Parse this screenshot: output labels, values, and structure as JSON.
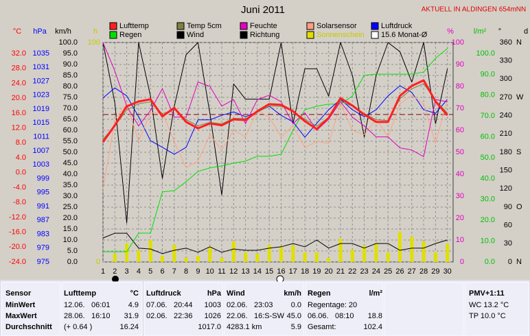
{
  "title": "Juni 2011",
  "station": "AKTUELL IN ALDINGEN 654mNN",
  "chart_data": {
    "type": "line",
    "grid": true,
    "x": [
      1,
      2,
      3,
      4,
      5,
      6,
      7,
      8,
      9,
      10,
      11,
      12,
      13,
      14,
      15,
      16,
      17,
      18,
      19,
      20,
      21,
      22,
      23,
      24,
      25,
      26,
      27,
      28,
      29,
      30
    ],
    "xlim": [
      1,
      30
    ],
    "axes": [
      {
        "unit": "°C",
        "color": "#ff0000",
        "lim": [
          -24,
          32
        ],
        "ticks": [
          {
            "value": 32,
            "label": "32.0"
          },
          {
            "value": 28,
            "label": "28.0"
          },
          {
            "value": 24,
            "label": "24.0"
          },
          {
            "value": 20,
            "label": "20.0"
          },
          {
            "value": 16,
            "label": "16.0"
          },
          {
            "value": 12,
            "label": "12.0"
          },
          {
            "value": 8,
            "label": "8.0"
          },
          {
            "value": 4,
            "label": "4.0"
          },
          {
            "value": 0,
            "label": "0.0"
          },
          {
            "value": -4,
            "label": "-4.0"
          },
          {
            "value": -8,
            "label": "-8.0"
          },
          {
            "value": -12,
            "label": "-12.0"
          },
          {
            "value": -16,
            "label": "-16.0"
          },
          {
            "value": -20,
            "label": "-20.0"
          },
          {
            "value": -24,
            "label": "-24.0"
          }
        ]
      },
      {
        "unit": "hPa",
        "color": "#0000ff",
        "lim": [
          975,
          1035
        ],
        "ticks": [
          1035,
          1031,
          1027,
          1023,
          1019,
          1015,
          1011,
          1007,
          1003,
          999,
          995,
          991,
          987,
          983,
          979,
          975
        ]
      },
      {
        "unit": "km/h",
        "color": "#000000",
        "lim": [
          0,
          100
        ],
        "ticks": [
          {
            "value": 100,
            "label": "100.0"
          },
          {
            "value": 95,
            "label": "95.0"
          },
          {
            "value": 90,
            "label": "90.0"
          },
          {
            "value": 85,
            "label": "85.0"
          },
          {
            "value": 80,
            "label": "80.0"
          },
          {
            "value": 75,
            "label": "75.0"
          },
          {
            "value": 70,
            "label": "70.0"
          },
          {
            "value": 65,
            "label": "65.0"
          },
          {
            "value": 60,
            "label": "60.0"
          },
          {
            "value": 55,
            "label": "55.0"
          },
          {
            "value": 50,
            "label": "50.0"
          },
          {
            "value": 45,
            "label": "45.0"
          },
          {
            "value": 40,
            "label": "40.0"
          },
          {
            "value": 35,
            "label": "35.0"
          },
          {
            "value": 30,
            "label": "30.0"
          },
          {
            "value": 25,
            "label": "25.0"
          },
          {
            "value": 20,
            "label": "20.0"
          },
          {
            "value": 15,
            "label": "15.0"
          },
          {
            "value": 10,
            "label": "10.0"
          },
          {
            "value": 5,
            "label": "5.0"
          },
          {
            "value": 0,
            "label": "0.0"
          }
        ]
      },
      {
        "unit": "h",
        "color": "#c8c800",
        "lim": [
          0,
          100
        ],
        "ticks": [
          100,
          0
        ]
      },
      {
        "unit": "%",
        "color": "#e000c0",
        "lim": [
          0,
          100
        ],
        "ticks": [
          100,
          90,
          80,
          70,
          60,
          50,
          40,
          30,
          20,
          10,
          0
        ]
      },
      {
        "unit": "l/m²",
        "color": "#00c000",
        "lim": [
          0,
          100
        ],
        "ticks": [
          {
            "value": 100,
            "label": "100.0"
          },
          {
            "value": 90,
            "label": "90.0"
          },
          {
            "value": 80,
            "label": "80.0"
          },
          {
            "value": 70,
            "label": "70.0"
          },
          {
            "value": 60,
            "label": "60.0"
          },
          {
            "value": 50,
            "label": "50.0"
          },
          {
            "value": 40,
            "label": "40.0"
          },
          {
            "value": 30,
            "label": "30.0"
          },
          {
            "value": 20,
            "label": "20.0"
          },
          {
            "value": 10,
            "label": "10.0"
          },
          {
            "value": 0,
            "label": "0.0"
          }
        ]
      },
      {
        "unit": "°",
        "color": "#000000",
        "lim": [
          0,
          360
        ],
        "ticks": [
          360,
          330,
          300,
          270,
          240,
          210,
          180,
          150,
          120,
          90,
          60,
          30,
          0
        ],
        "compass": [
          {
            "value": 360,
            "label": "N"
          },
          {
            "value": 270,
            "label": "W"
          },
          {
            "value": 180,
            "label": "S"
          },
          {
            "value": 90,
            "label": "O"
          },
          {
            "value": 0,
            "label": "N"
          }
        ]
      }
    ],
    "corner_label": "d",
    "series": [
      {
        "name": "Lufttemp",
        "type": "line",
        "color": "#ff2020",
        "width": 3,
        "axis": 0,
        "values": [
          8.2,
          12.7,
          17.8,
          19.1,
          19.7,
          15.1,
          17.4,
          13.6,
          11.9,
          13.2,
          12.7,
          14.3,
          14.1,
          16.5,
          18.4,
          18.2,
          16.5,
          13.8,
          11.7,
          14.7,
          20.0,
          18.0,
          15.6,
          13.6,
          13.6,
          20.6,
          23.3,
          24.8,
          19.1,
          15.4
        ]
      },
      {
        "name": "Temp 5cm",
        "type": "line",
        "color": "#808040",
        "width": 1,
        "axis": 0,
        "values": [
          9.0,
          12.5,
          16.8,
          18.5,
          19.0,
          15.8,
          17.0,
          14.2,
          12.6,
          13.5,
          13.1,
          14.6,
          14.5,
          16.2,
          17.9,
          17.8,
          16.4,
          14.3,
          12.5,
          14.8,
          19.2,
          17.8,
          15.9,
          14.2,
          14.0,
          19.8,
          22.5,
          23.9,
          19.4,
          16.0
        ]
      },
      {
        "name": "Feuchte",
        "type": "line",
        "color": "#e000c0",
        "width": 1,
        "axis": 4,
        "values": [
          100,
          87,
          71,
          62,
          69,
          79,
          66,
          66,
          82,
          80,
          71,
          74,
          63,
          74,
          76,
          73,
          63,
          68,
          60,
          65,
          73,
          66,
          62,
          57,
          57,
          52,
          51,
          48,
          74,
          73
        ]
      },
      {
        "name": "Solarsensor",
        "type": "line",
        "color": "#ffa080",
        "width": 1,
        "axis": 4,
        "values": [
          33,
          65,
          72,
          55,
          68,
          68,
          55,
          43,
          46,
          58,
          51,
          60,
          57,
          69,
          66,
          57,
          62,
          52,
          55,
          54,
          72,
          60,
          58,
          65,
          57,
          72,
          76,
          72,
          54,
          74
        ]
      },
      {
        "name": "Luftdruck",
        "type": "line",
        "color": "#0000ff",
        "width": 1,
        "axis": 1,
        "values": [
          1022.2,
          1025.1,
          1022.8,
          1016.8,
          1009.9,
          1008.0,
          1006.0,
          1008.0,
          1015.9,
          1015.9,
          1017.2,
          1018.2,
          1016.8,
          1018.2,
          1019.8,
          1017.2,
          1015.3,
          1010.9,
          1014.9,
          1018.8,
          1021.8,
          1018.8,
          1016.8,
          1018.8,
          1022.8,
          1025.7,
          1023.8,
          1018.8,
          1017.8,
          1021.8
        ]
      },
      {
        "name": "Regen",
        "type": "line",
        "color": "#00e000",
        "width": 1,
        "axis": 5,
        "values": [
          4.9,
          4.9,
          4.9,
          13.8,
          13.8,
          33.6,
          34.2,
          38.5,
          43.4,
          45.1,
          46.1,
          47.4,
          48.4,
          50.7,
          50.7,
          51.6,
          63.2,
          73.0,
          74.7,
          75.7,
          75.7,
          79.6,
          89.5,
          90.1,
          90.1,
          90.1,
          90.1,
          91.1,
          97.7,
          102.4
        ]
      },
      {
        "name": "Wind",
        "type": "line",
        "color": "#000000",
        "width": 1,
        "axis": 2,
        "values": [
          10.9,
          13.1,
          13.1,
          6.3,
          5.9,
          3.8,
          5.3,
          6.3,
          4.4,
          6.9,
          4.4,
          5.9,
          5.3,
          5.3,
          6.3,
          6.9,
          8.4,
          6.9,
          10.0,
          6.3,
          8.4,
          8.4,
          6.3,
          8.4,
          8.4,
          5.3,
          6.3,
          6.3,
          8.4,
          10.0
        ]
      },
      {
        "name": "Richtung",
        "type": "line",
        "color": "#000000",
        "width": 1,
        "axis": 6,
        "values": [
          360,
          261,
          64,
          360,
          272,
          137,
          255,
          340,
          360,
          244,
          110,
          292,
          267,
          267,
          267,
          360,
          227,
          317,
          317,
          272,
          360,
          306,
          205,
          306,
          360,
          345,
          295,
          360,
          227,
          317
        ]
      },
      {
        "name": "Sonnenschein",
        "type": "bar",
        "color": "#e0e000",
        "label_color": "#c8c800",
        "axis": 3,
        "values": [
          0,
          3.8,
          8.4,
          5.3,
          10.0,
          2.8,
          7.8,
          1.9,
          2.8,
          6.9,
          1.9,
          9.4,
          4.4,
          3.8,
          7.8,
          6.9,
          7.5,
          4.4,
          4.4,
          1.9,
          10.6,
          5.6,
          7.5,
          8.4,
          4.4,
          13.8,
          11.6,
          9.4,
          4.4,
          8.4
        ]
      }
    ],
    "monthly_mean": {
      "name": "15.6 Monat-Ø",
      "value": 15.6,
      "axis": 0,
      "color": "#800000"
    }
  },
  "table": {
    "header": {
      "sensor": "Sensor",
      "groups": [
        {
          "name": "Lufttemp",
          "unit": "°C"
        },
        {
          "name": "Luftdruck",
          "unit": "hPa"
        },
        {
          "name": "Wind",
          "unit": "km/h"
        },
        {
          "name": "Regen",
          "unit": "l/m²"
        }
      ],
      "pmv": "PMV+1:11"
    },
    "rows": [
      {
        "label": "MinWert",
        "cells": [
          [
            "12.06.",
            "06:01",
            "4.9"
          ],
          [
            "07.06.",
            "20:44",
            "1003"
          ],
          [
            "02.06.",
            "23:03",
            "0.0"
          ],
          [
            "Regentage: 20"
          ]
        ],
        "pmv": "WC 13.2 °C"
      },
      {
        "label": "MaxWert",
        "cells": [
          [
            "28.06.",
            "16:10",
            "31.9"
          ],
          [
            "02.06.",
            "22:36",
            "1026"
          ],
          [
            "22.06.",
            "16:S-SW",
            "45.0"
          ],
          [
            "06.06.",
            "08:10",
            "18.8"
          ]
        ],
        "pmv": "TP 10.0 °C"
      },
      {
        "label": "Durchschnitt",
        "cells": [
          [
            "(+ 0.64 )",
            "16.24"
          ],
          [
            "1017.0"
          ],
          [
            "4283.1 km",
            "5.9"
          ],
          [
            "Gesamt:",
            "102.4"
          ]
        ]
      }
    ]
  }
}
